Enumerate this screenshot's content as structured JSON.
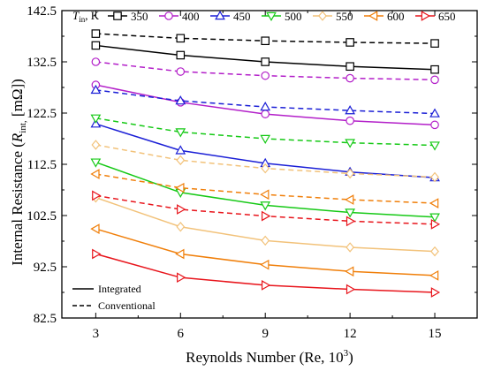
{
  "chart_data": {
    "type": "line",
    "xlabel_main": "Reynolds Number (Re, 10",
    "xlabel_sup": "3",
    "xlabel_tail": ")",
    "ylabel_pre": "Internal Resistance (",
    "ylabel_R": "R",
    "ylabel_sub": "int,",
    "ylabel_post": " [mΩ])",
    "legend_title_T": "T",
    "legend_title_sub": "in",
    "legend_title_tail": ", K",
    "x": [
      3,
      6,
      9,
      12,
      15
    ],
    "x_ticks": [
      "3",
      "6",
      "9",
      "12",
      "15"
    ],
    "xlim": [
      1.8,
      16.5
    ],
    "ylim": [
      82.5,
      142.5
    ],
    "y_ticks": [
      "82.5",
      "92.5",
      "102.5",
      "112.5",
      "122.5",
      "132.5",
      "142.5"
    ],
    "style_legend": [
      "Integrated",
      "Conventional"
    ],
    "series": [
      {
        "name": "350",
        "color": "#000000",
        "marker": "square",
        "integrated": [
          135.7,
          133.8,
          132.5,
          131.6,
          131.0
        ],
        "conventional": [
          138.0,
          137.1,
          136.6,
          136.3,
          136.1
        ]
      },
      {
        "name": "400",
        "color": "#b31fc9",
        "marker": "circle",
        "integrated": [
          128.0,
          124.6,
          122.3,
          121.0,
          120.2
        ],
        "conventional": [
          132.5,
          130.6,
          129.8,
          129.3,
          129.0
        ]
      },
      {
        "name": "450",
        "color": "#1b1fd6",
        "marker": "triangle-up",
        "integrated": [
          120.4,
          115.2,
          112.7,
          111.0,
          109.9
        ],
        "conventional": [
          127.0,
          124.9,
          123.7,
          123.0,
          122.4
        ]
      },
      {
        "name": "500",
        "color": "#16c916",
        "marker": "triangle-down",
        "integrated": [
          112.9,
          107.0,
          104.5,
          103.1,
          102.2
        ],
        "conventional": [
          121.5,
          118.8,
          117.5,
          116.7,
          116.2
        ]
      },
      {
        "name": "550",
        "color": "#f2c27a",
        "marker": "diamond",
        "integrated": [
          106.0,
          100.3,
          97.6,
          96.3,
          95.5
        ],
        "conventional": [
          116.3,
          113.3,
          111.7,
          110.7,
          110.0
        ]
      },
      {
        "name": "600",
        "color": "#f07f0a",
        "marker": "triangle-left",
        "integrated": [
          99.9,
          95.0,
          92.9,
          91.6,
          90.8
        ],
        "conventional": [
          110.6,
          107.9,
          106.6,
          105.6,
          104.9
        ]
      },
      {
        "name": "650",
        "color": "#e8151c",
        "marker": "triangle-right",
        "integrated": [
          95.0,
          90.4,
          88.9,
          88.1,
          87.5
        ],
        "conventional": [
          106.4,
          103.7,
          102.4,
          101.4,
          100.8
        ]
      }
    ]
  }
}
